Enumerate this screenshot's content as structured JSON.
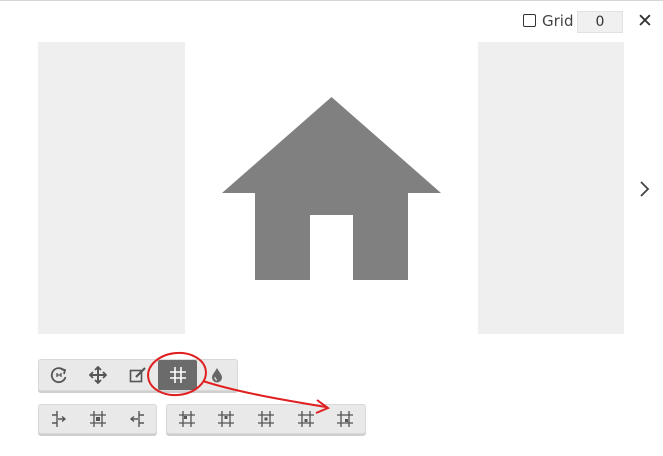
{
  "header": {
    "grid_label": "Grid",
    "grid_checked": false,
    "grid_value": "0",
    "close_symbol": "✕"
  },
  "preview": {
    "main_icon": "home-icon",
    "icon_color": "#808080",
    "next_icon": "chevron-right-icon"
  },
  "toolbar_main": {
    "buttons": [
      {
        "icon": "rotate-icon"
      },
      {
        "icon": "move-icon"
      },
      {
        "icon": "edit-icon"
      },
      {
        "icon": "grid-icon",
        "active": true
      },
      {
        "icon": "color-drop-icon"
      }
    ]
  },
  "toolbar_align": {
    "buttons": [
      {
        "icon": "align-left-icon"
      },
      {
        "icon": "align-center-icon"
      },
      {
        "icon": "align-right-icon"
      }
    ]
  },
  "toolbar_position": {
    "buttons": [
      {
        "icon": "position-top-left-icon"
      },
      {
        "icon": "position-top-icon"
      },
      {
        "icon": "position-center-icon"
      },
      {
        "icon": "position-bottom-icon"
      },
      {
        "icon": "position-bottom-right-icon"
      }
    ]
  },
  "colors": {
    "annotation": "#e02020",
    "active_button": "#6b6b6b",
    "panel": "#efefef"
  }
}
